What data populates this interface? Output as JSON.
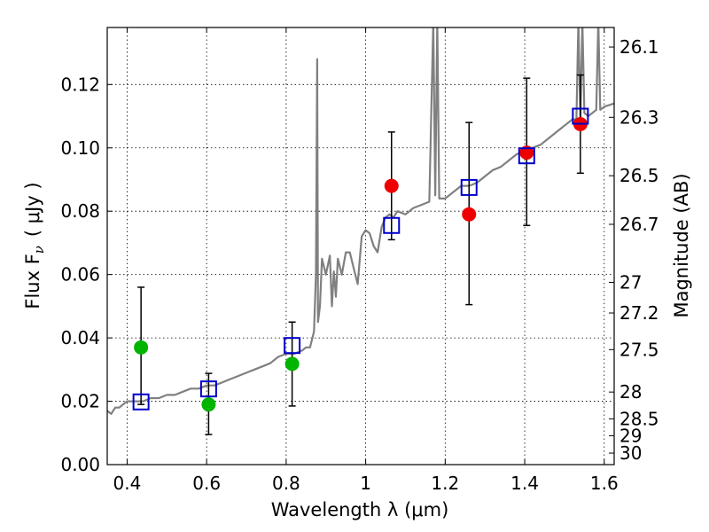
{
  "chart_data": {
    "type": "scatter",
    "xlabel": "Wavelength  λ (μm)",
    "ylabel": "Flux  F",
    "ylabel_sub": "ν",
    "ylabel_unit": "( μJy )",
    "y2label": "Magnitude (AB)",
    "xlim": [
      0.35,
      1.625
    ],
    "ylim": [
      0.0,
      0.138
    ],
    "x_ticks": [
      0.4,
      0.6,
      0.8,
      1.0,
      1.2,
      1.4,
      1.6
    ],
    "x_tick_labels": [
      "0.4",
      "0.6",
      "0.8",
      "1",
      "1.2",
      "1.4",
      "1.6"
    ],
    "y_ticks": [
      0.0,
      0.02,
      0.04,
      0.06,
      0.08,
      0.1,
      0.12
    ],
    "y_tick_labels": [
      "0.00",
      "0.02",
      "0.04",
      "0.06",
      "0.08",
      "0.10",
      "0.12"
    ],
    "y2_tick_labels": [
      "26.1",
      "26.3",
      "26.5",
      "26.7",
      "27",
      "27.2",
      "27.5",
      "28",
      "28.5",
      "29",
      "30"
    ],
    "y2_tick_values": [
      26.1,
      26.3,
      26.5,
      26.7,
      27.0,
      27.2,
      27.5,
      28.0,
      28.5,
      29.0,
      30.0
    ],
    "grid": true,
    "colors": {
      "model": "#808080",
      "green": "#00b400",
      "red": "#ee0000",
      "box": "#0000cc",
      "errorbar": "#000000"
    },
    "model_spectrum": {
      "x": [
        0.35,
        0.36,
        0.37,
        0.38,
        0.39,
        0.4,
        0.42,
        0.44,
        0.46,
        0.48,
        0.5,
        0.52,
        0.54,
        0.56,
        0.58,
        0.6,
        0.62,
        0.64,
        0.66,
        0.68,
        0.7,
        0.72,
        0.74,
        0.76,
        0.78,
        0.8,
        0.82,
        0.84,
        0.85,
        0.86,
        0.87,
        0.875,
        0.878,
        0.88,
        0.885,
        0.89,
        0.9,
        0.91,
        0.915,
        0.92,
        0.925,
        0.93,
        0.94,
        0.95,
        0.96,
        0.97,
        0.98,
        0.99,
        1.0,
        1.01,
        1.02,
        1.03,
        1.04,
        1.05,
        1.06,
        1.07,
        1.08,
        1.1,
        1.12,
        1.14,
        1.16,
        1.17,
        1.175,
        1.18,
        1.185,
        1.19,
        1.2,
        1.22,
        1.24,
        1.26,
        1.28,
        1.3,
        1.32,
        1.34,
        1.36,
        1.38,
        1.4,
        1.42,
        1.44,
        1.46,
        1.48,
        1.5,
        1.52,
        1.53,
        1.535,
        1.54,
        1.545,
        1.55,
        1.56,
        1.57,
        1.58,
        1.585,
        1.59,
        1.6,
        1.625
      ],
      "y": [
        0.017,
        0.016,
        0.018,
        0.018,
        0.019,
        0.02,
        0.02,
        0.02,
        0.021,
        0.021,
        0.022,
        0.022,
        0.023,
        0.024,
        0.024,
        0.025,
        0.025,
        0.026,
        0.027,
        0.028,
        0.029,
        0.03,
        0.031,
        0.032,
        0.034,
        0.035,
        0.035,
        0.036,
        0.037,
        0.037,
        0.042,
        0.06,
        0.128,
        0.045,
        0.05,
        0.065,
        0.06,
        0.066,
        0.05,
        0.061,
        0.053,
        0.065,
        0.06,
        0.067,
        0.067,
        0.062,
        0.057,
        0.072,
        0.074,
        0.073,
        0.069,
        0.067,
        0.075,
        0.078,
        0.079,
        0.078,
        0.08,
        0.079,
        0.081,
        0.082,
        0.083,
        0.14,
        0.085,
        0.14,
        0.084,
        0.084,
        0.084,
        0.086,
        0.088,
        0.088,
        0.089,
        0.091,
        0.093,
        0.094,
        0.096,
        0.098,
        0.099,
        0.1,
        0.101,
        0.103,
        0.105,
        0.107,
        0.109,
        0.109,
        0.14,
        0.109,
        0.14,
        0.111,
        0.11,
        0.111,
        0.112,
        0.14,
        0.112,
        0.113,
        0.114
      ]
    },
    "series": [
      {
        "marker": "circle",
        "color": "green",
        "x": [
          0.435,
          0.605,
          0.815
        ],
        "y": [
          0.037,
          0.019,
          0.0318
        ],
        "yerr_low": [
          0.019,
          0.0095,
          0.0185
        ],
        "yerr_high": [
          0.056,
          0.0288,
          0.045
        ]
      },
      {
        "marker": "circle",
        "color": "red",
        "x": [
          1.065,
          1.26,
          1.405,
          1.54
        ],
        "y": [
          0.088,
          0.079,
          0.0985,
          0.1075
        ],
        "yerr_low": [
          0.071,
          0.0505,
          0.0755,
          0.092
        ],
        "yerr_high": [
          0.105,
          0.108,
          0.122,
          0.123
        ]
      },
      {
        "marker": "open-square",
        "color": "box",
        "x": [
          0.435,
          0.605,
          0.815,
          1.065,
          1.26,
          1.405,
          1.54
        ],
        "y": [
          0.0198,
          0.0239,
          0.0376,
          0.0755,
          0.0875,
          0.0975,
          0.11
        ]
      }
    ]
  }
}
